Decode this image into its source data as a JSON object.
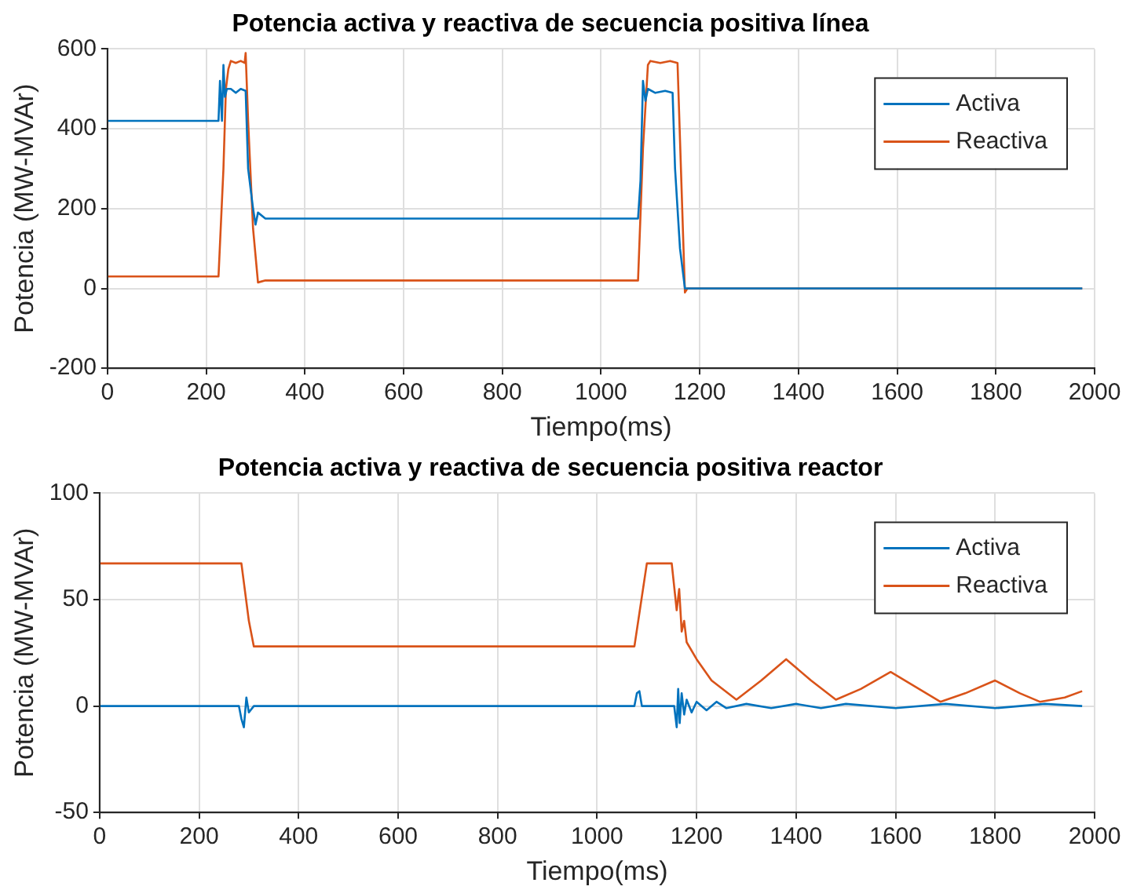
{
  "chart_data": [
    {
      "type": "line",
      "title": "Potencia activa y reactiva de secuencia positiva línea",
      "xlabel": "Tiempo(ms)",
      "ylabel": "Potencia (MW-MVAr)",
      "xlim": [
        0,
        2000
      ],
      "xticks": [
        0,
        200,
        400,
        600,
        800,
        1000,
        1200,
        1400,
        1600,
        1800,
        2000
      ],
      "ylim": [
        -200,
        600
      ],
      "yticks": [
        -200,
        0,
        200,
        400,
        600
      ],
      "grid": true,
      "legend": "top right",
      "marker": "none",
      "line_style": "solid",
      "series": [
        {
          "name": "Activa",
          "color": "#0072bd",
          "x": [
            0,
            225,
            228,
            232,
            235,
            238,
            242,
            250,
            260,
            270,
            280,
            285,
            290,
            295,
            300,
            305,
            320,
            1075,
            1080,
            1085,
            1090,
            1095,
            1110,
            1130,
            1145,
            1150,
            1160,
            1170,
            1975
          ],
          "values": [
            420,
            420,
            520,
            420,
            560,
            480,
            500,
            500,
            490,
            500,
            495,
            300,
            250,
            200,
            160,
            190,
            175,
            175,
            270,
            520,
            470,
            500,
            490,
            495,
            490,
            300,
            100,
            0,
            0
          ]
        },
        {
          "name": "Reactiva",
          "color": "#d95319",
          "x": [
            0,
            225,
            235,
            240,
            245,
            250,
            260,
            270,
            278,
            280,
            285,
            295,
            305,
            320,
            1075,
            1085,
            1095,
            1100,
            1120,
            1140,
            1155,
            1170,
            1175,
            1975
          ],
          "values": [
            30,
            30,
            300,
            500,
            550,
            570,
            565,
            570,
            565,
            590,
            420,
            150,
            15,
            20,
            20,
            350,
            560,
            570,
            565,
            570,
            565,
            -10,
            0,
            0
          ]
        }
      ]
    },
    {
      "type": "line",
      "title": "Potencia activa y reactiva de secuencia positiva reactor",
      "xlabel": "Tiempo(ms)",
      "ylabel": "Potencia (MW-MVAr)",
      "xlim": [
        0,
        2000
      ],
      "xticks": [
        0,
        200,
        400,
        600,
        800,
        1000,
        1200,
        1400,
        1600,
        1800,
        2000
      ],
      "ylim": [
        -50,
        100
      ],
      "yticks": [
        -50,
        0,
        50,
        100
      ],
      "grid": true,
      "legend": "top right",
      "marker": "none",
      "line_style": "solid",
      "series": [
        {
          "name": "Activa",
          "color": "#0072bd",
          "x": [
            0,
            280,
            285,
            290,
            295,
            300,
            310,
            1075,
            1080,
            1085,
            1090,
            1155,
            1160,
            1163,
            1166,
            1170,
            1175,
            1180,
            1190,
            1200,
            1220,
            1240,
            1260,
            1300,
            1350,
            1400,
            1450,
            1500,
            1600,
            1700,
            1800,
            1900,
            1975
          ],
          "values": [
            0,
            0,
            -6,
            -10,
            4,
            -3,
            0,
            0,
            6,
            7,
            0,
            0,
            -10,
            8,
            -8,
            6,
            -4,
            3,
            -3,
            2,
            -2,
            2,
            -1,
            1,
            -1,
            1,
            -1,
            1,
            -1,
            1,
            -1,
            1,
            0
          ]
        },
        {
          "name": "Reactiva",
          "color": "#d95319",
          "x": [
            0,
            285,
            300,
            310,
            1075,
            1100,
            1150,
            1160,
            1165,
            1170,
            1175,
            1180,
            1200,
            1230,
            1280,
            1330,
            1380,
            1430,
            1480,
            1530,
            1590,
            1640,
            1690,
            1740,
            1800,
            1850,
            1890,
            1940,
            1975
          ],
          "values": [
            67,
            67,
            40,
            28,
            28,
            67,
            67,
            45,
            55,
            35,
            40,
            30,
            22,
            12,
            3,
            12,
            22,
            12,
            3,
            8,
            16,
            9,
            2,
            6,
            12,
            6,
            2,
            4,
            7
          ]
        }
      ]
    }
  ]
}
